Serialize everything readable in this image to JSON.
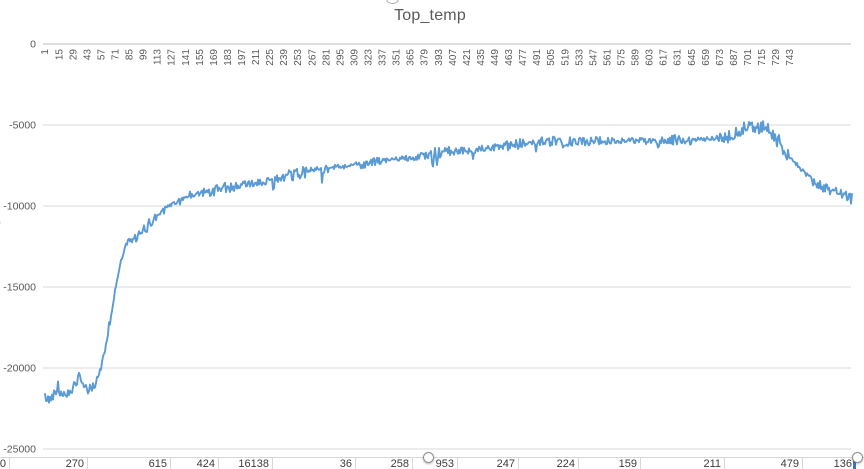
{
  "title": "Top_temp",
  "chart_data": {
    "type": "line",
    "title": "Top_temp",
    "xlabel": "",
    "ylabel": "",
    "legend": "none",
    "grid": true,
    "ylim": [
      -25000,
      0
    ],
    "y_ticks": [
      0,
      -5000,
      -10000,
      -15000,
      -20000,
      -25000
    ],
    "y_tick_labels": [
      "0",
      "-5000",
      "-10000",
      "-15000",
      "-20000",
      "-25000"
    ],
    "x_tick_labels": [
      "1",
      "15",
      "29",
      "43",
      "57",
      "71",
      "85",
      "99",
      "113",
      "127",
      "141",
      "155",
      "169",
      "183",
      "197",
      "211",
      "225",
      "239",
      "253",
      "267",
      "281",
      "295",
      "309",
      "323",
      "337",
      "351",
      "365",
      "379",
      "393",
      "407",
      "421",
      "435",
      "449",
      "463",
      "477",
      "491",
      "505",
      "519",
      "533",
      "547",
      "561",
      "575",
      "589",
      "603",
      "617",
      "631",
      "645",
      "659",
      "673",
      "687",
      "701",
      "715",
      "729",
      "743"
    ],
    "n_points": 808,
    "noise_amplitude": 235,
    "trend": [
      [
        0,
        -21800
      ],
      [
        4,
        -22000
      ],
      [
        10,
        -21500
      ],
      [
        14,
        -21400
      ],
      [
        20,
        -21650
      ],
      [
        26,
        -21300
      ],
      [
        30,
        -21050
      ],
      [
        34,
        -20600
      ],
      [
        38,
        -21100
      ],
      [
        42,
        -21350
      ],
      [
        46,
        -21250
      ],
      [
        50,
        -20950
      ],
      [
        55,
        -20200
      ],
      [
        60,
        -18900
      ],
      [
        65,
        -17200
      ],
      [
        70,
        -15300
      ],
      [
        75,
        -13600
      ],
      [
        80,
        -12500
      ],
      [
        85,
        -12150
      ],
      [
        95,
        -11800
      ],
      [
        105,
        -11050
      ],
      [
        115,
        -10400
      ],
      [
        125,
        -9950
      ],
      [
        135,
        -9650
      ],
      [
        150,
        -9280
      ],
      [
        165,
        -9100
      ],
      [
        180,
        -8850
      ],
      [
        200,
        -8700
      ],
      [
        220,
        -8450
      ],
      [
        240,
        -8200
      ],
      [
        260,
        -7900
      ],
      [
        280,
        -7750
      ],
      [
        300,
        -7500
      ],
      [
        320,
        -7380
      ],
      [
        340,
        -7200
      ],
      [
        360,
        -7050
      ],
      [
        380,
        -6880
      ],
      [
        400,
        -6700
      ],
      [
        420,
        -6570
      ],
      [
        440,
        -6500
      ],
      [
        460,
        -6320
      ],
      [
        480,
        -6140
      ],
      [
        500,
        -6080
      ],
      [
        520,
        -6060
      ],
      [
        540,
        -6000
      ],
      [
        560,
        -6000
      ],
      [
        580,
        -5940
      ],
      [
        600,
        -6000
      ],
      [
        620,
        -5940
      ],
      [
        640,
        -5940
      ],
      [
        660,
        -5880
      ],
      [
        680,
        -5820
      ],
      [
        695,
        -5400
      ],
      [
        705,
        -4900
      ],
      [
        712,
        -5250
      ],
      [
        720,
        -4950
      ],
      [
        728,
        -5700
      ],
      [
        738,
        -6500
      ],
      [
        748,
        -7200
      ],
      [
        758,
        -7850
      ],
      [
        768,
        -8400
      ],
      [
        778,
        -8800
      ],
      [
        788,
        -9050
      ],
      [
        798,
        -9350
      ],
      [
        807,
        -9550
      ]
    ]
  },
  "spreadsheet_row": {
    "values": [
      "0",
      "270",
      "615",
      "424",
      "16138",
      "36",
      "258",
      "953",
      "247",
      "224",
      "159",
      "211",
      "479",
      "136"
    ]
  },
  "artifacts": {
    "left_clipped_char": "0"
  },
  "colors": {
    "series": "#5B9BD5",
    "gridline": "#D9D9D9",
    "axis_line": "#BFBFBF",
    "tick_label": "#595959",
    "title": "#595959",
    "cell_text": "#3d3d3d",
    "cell_border": "#d8d8d8",
    "selection_blue": "#3a76c8",
    "handle_border": "#8f8f8f"
  }
}
